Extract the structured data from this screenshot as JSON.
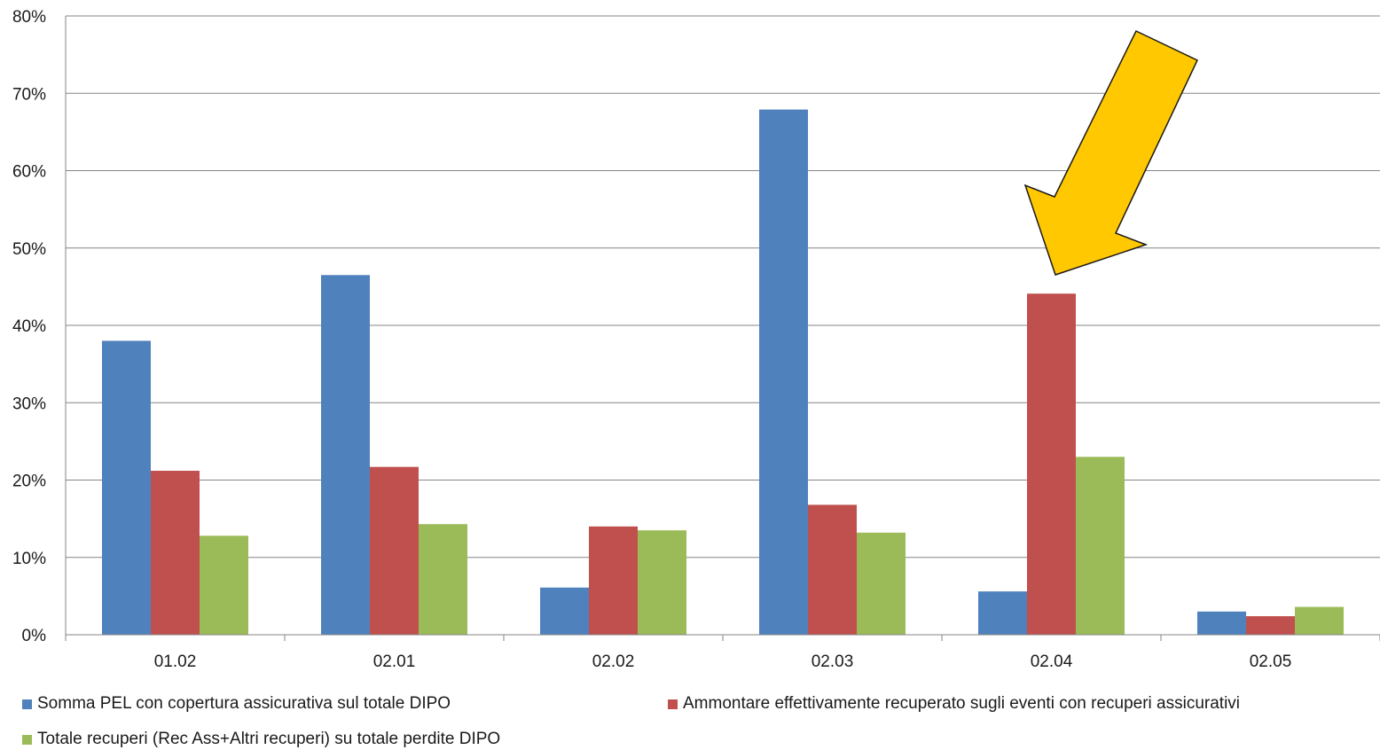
{
  "chart_data": {
    "type": "bar",
    "categories": [
      "01.02",
      "02.01",
      "02.02",
      "02.03",
      "02.04",
      "02.05"
    ],
    "series": [
      {
        "name": "Somma PEL con copertura assicurativa sul totale DIPO",
        "color": "#4F81BD",
        "values": [
          38.0,
          46.5,
          6.1,
          67.9,
          5.6,
          3.0
        ]
      },
      {
        "name": "Ammontare effettivamente recuperato sugli eventi con recuperi assicurativi",
        "color": "#C0504D",
        "values": [
          21.2,
          21.7,
          14.0,
          16.8,
          44.1,
          2.4
        ]
      },
      {
        "name": "Totale recuperi (Rec Ass+Altri recuperi) su totale perdite DIPO",
        "color": "#9BBB59",
        "values": [
          12.8,
          14.3,
          13.5,
          13.2,
          23.0,
          3.6
        ]
      }
    ],
    "y_ticks": [
      "0%",
      "10%",
      "20%",
      "30%",
      "40%",
      "50%",
      "60%",
      "70%",
      "80%"
    ],
    "ylim": [
      0,
      80
    ],
    "grid": true,
    "legend_position": "bottom",
    "annotation": {
      "type": "arrow",
      "color": "#FFC800",
      "points_to_category": "02.04"
    }
  }
}
